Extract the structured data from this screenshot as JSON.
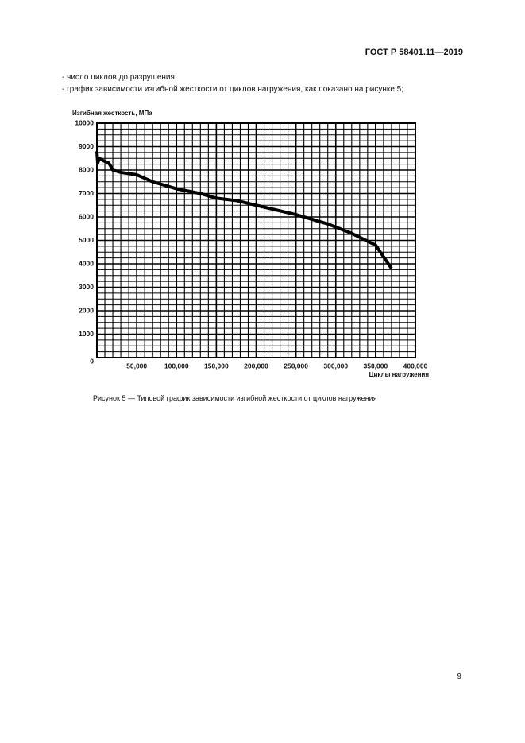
{
  "header": "ГОСТ Р 58401.11—2019",
  "text": [
    "- число циклов до разрушения;",
    "- график зависимости изгибной жесткости от циклов нагружения, как показано на рисунке 5;"
  ],
  "chart_data": {
    "type": "line",
    "y_label": "Изгибная жесткость, МПа",
    "x_label": "Циклы нагружения",
    "x": [
      0,
      1000,
      3000,
      8000,
      15000,
      20000,
      30000,
      50000,
      70000,
      100000,
      130000,
      150000,
      175000,
      200000,
      250000,
      290000,
      320000,
      350000,
      370000
    ],
    "values": [
      8800,
      8300,
      8500,
      8400,
      8300,
      8000,
      7900,
      7800,
      7500,
      7200,
      7000,
      6800,
      6700,
      6500,
      6100,
      5700,
      5300,
      4800,
      3800
    ],
    "color": "#000000",
    "xlim": [
      0,
      400000
    ],
    "ylim": [
      0,
      10000
    ],
    "xticks": [
      {
        "value": 50000,
        "label": "50,000"
      },
      {
        "value": 100000,
        "label": "100,000"
      },
      {
        "value": 150000,
        "label": "150,000"
      },
      {
        "value": 200000,
        "label": "200,000"
      },
      {
        "value": 250000,
        "label": "250,000"
      },
      {
        "value": 300000,
        "label": "300,000"
      },
      {
        "value": 350000,
        "label": "350,000"
      },
      {
        "value": 400000,
        "label": "400,000"
      }
    ],
    "yticks": [
      0,
      1000,
      2000,
      3000,
      4000,
      5000,
      6000,
      7000,
      8000,
      9000,
      10000
    ],
    "grid": true
  },
  "caption": "Рисунок 5 — Типовой график зависимости изгибной жесткости от циклов нагружения",
  "page_number": "9"
}
